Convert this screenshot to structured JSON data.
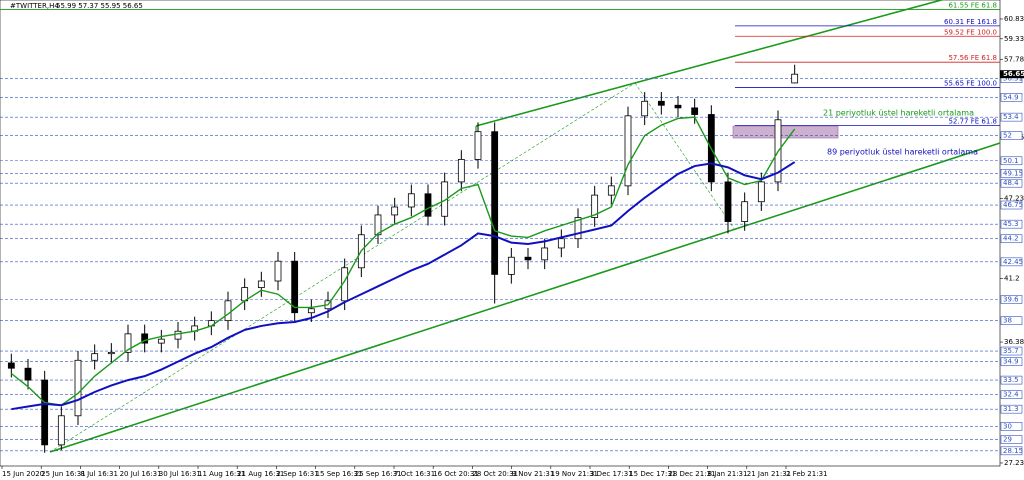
{
  "header": {
    "symbol": "#TWITTER,H4",
    "ohlc": "55.99 57.37 55.95 56.65"
  },
  "chart_data": {
    "type": "candlestick",
    "open": [
      34.8,
      34.4,
      33.5,
      28.6,
      30.8,
      35.0,
      35.5,
      35.6,
      37.0,
      36.3,
      36.6,
      37.2,
      37.6,
      38.0,
      39.5,
      40.5,
      41.0,
      42.5,
      38.6,
      38.9,
      39.5,
      42.0,
      44.5,
      46.0,
      46.6,
      47.6,
      45.9,
      48.5,
      50.2,
      52.3,
      41.5,
      42.8,
      42.6,
      43.5,
      44.2,
      45.8,
      47.5,
      48.2,
      53.5,
      54.6,
      54.3,
      54.1,
      53.6,
      48.5,
      45.5,
      47.0,
      48.5,
      55.99
    ],
    "high": [
      35.5,
      35.1,
      34.2,
      31.5,
      35.7,
      36.2,
      36.3,
      37.7,
      37.7,
      37.3,
      37.9,
      38.3,
      38.7,
      40.2,
      41.2,
      41.7,
      43.2,
      43.2,
      39.6,
      40.2,
      42.7,
      45.2,
      46.7,
      47.3,
      48.3,
      48.3,
      49.2,
      50.9,
      53.0,
      53.0,
      43.5,
      43.5,
      44.2,
      44.9,
      46.5,
      48.2,
      48.9,
      54.2,
      55.3,
      55.3,
      55.0,
      54.8,
      54.3,
      49.2,
      47.7,
      49.2,
      53.9,
      57.37
    ],
    "low": [
      33.7,
      32.8,
      28.0,
      28.2,
      30.1,
      34.3,
      34.8,
      34.9,
      35.6,
      35.6,
      35.9,
      36.5,
      36.9,
      37.3,
      38.8,
      39.8,
      40.3,
      37.9,
      37.9,
      38.2,
      38.8,
      41.3,
      43.8,
      45.3,
      45.9,
      45.2,
      45.2,
      47.8,
      49.5,
      39.3,
      40.8,
      41.9,
      41.9,
      42.8,
      43.5,
      45.1,
      46.8,
      47.5,
      52.8,
      53.6,
      53.4,
      52.9,
      47.8,
      44.6,
      44.8,
      46.3,
      47.8,
      55.95
    ],
    "close": [
      34.4,
      33.5,
      28.6,
      30.8,
      35.0,
      35.5,
      35.6,
      37.0,
      36.3,
      36.6,
      37.2,
      37.6,
      38.0,
      39.5,
      40.5,
      41.0,
      42.5,
      38.6,
      38.9,
      39.5,
      42.0,
      44.5,
      46.0,
      46.6,
      47.6,
      45.9,
      48.5,
      50.2,
      52.3,
      41.5,
      42.8,
      42.6,
      43.5,
      44.2,
      45.8,
      47.5,
      48.2,
      53.5,
      54.6,
      54.3,
      54.1,
      53.6,
      48.5,
      45.5,
      47.0,
      48.5,
      53.2,
      56.65
    ],
    "series": [
      {
        "name": "21 periyotluk üstel hareketli ortalama",
        "color": "#1a9a1a",
        "values": [
          34.0,
          33.0,
          31.8,
          31.6,
          32.5,
          33.8,
          34.8,
          35.8,
          36.5,
          36.8,
          37.0,
          37.2,
          37.6,
          38.5,
          39.5,
          40.3,
          40.0,
          39.0,
          39.0,
          39.2,
          41.0,
          43.3,
          44.6,
          45.3,
          45.8,
          46.5,
          47.1,
          48.0,
          48.3,
          44.8,
          44.4,
          44.3,
          44.8,
          45.2,
          45.6,
          46.0,
          46.6,
          49.8,
          52.0,
          52.8,
          53.3,
          53.4,
          51.0,
          48.8,
          48.3,
          48.6,
          50.8,
          52.5
        ]
      },
      {
        "name": "89 periyotluk üstel hareketli ortalama",
        "color": "#1010c0",
        "values": [
          31.3,
          31.5,
          31.7,
          31.6,
          32.0,
          32.6,
          33.1,
          33.5,
          33.8,
          34.3,
          34.9,
          35.5,
          36.0,
          36.7,
          37.3,
          37.6,
          37.8,
          37.9,
          38.2,
          38.7,
          39.4,
          40.0,
          40.6,
          41.2,
          41.8,
          42.3,
          43.0,
          43.7,
          44.6,
          44.4,
          43.9,
          43.8,
          44.0,
          44.3,
          44.6,
          44.9,
          45.2,
          46.3,
          47.3,
          48.2,
          49.1,
          49.7,
          49.9,
          49.6,
          49.0,
          48.7,
          49.2,
          50.0
        ]
      }
    ],
    "time_labels": [
      "15 Jun 2020",
      "25 Jun 16:31",
      "8 Jul 16:31",
      "20 Jul 16:31",
      "30 Jul 16:31",
      "11 Aug 16:31",
      "21 Aug 16:31",
      "2 Sep 16:31",
      "15 Sep 16:31",
      "25 Sep 16:31",
      "7 Oct 16:31",
      "16 Oct 20:31",
      "28 Oct 20:31",
      "9 Nov 21:31",
      "19 Nov 21:31",
      "3 Dec 17:31",
      "15 Dec 17:31",
      "28 Dec 21:31",
      "8 Jan 21:31",
      "21 Jan 21:31",
      "2 Feb 21:31"
    ],
    "ylim": [
      27.0,
      61.66
    ],
    "yticks": [
      60.83,
      59.33,
      57.78,
      51.86,
      47.23,
      41.2,
      36.38,
      27.23
    ],
    "levels": [
      56.31,
      54.9,
      53.4,
      52.0,
      50.1,
      49.15,
      48.4,
      46.75,
      45.3,
      44.2,
      42.45,
      39.6,
      38.0,
      35.7,
      34.9,
      33.5,
      32.4,
      31.3,
      30.0,
      29.0,
      28.15
    ],
    "fib_levels": [
      {
        "value": 61.55,
        "label": "61.55 FE 61.8",
        "color": "#1a9a1a"
      },
      {
        "value": 60.31,
        "label": "60.31 FE 161.8",
        "color": "#1010c0"
      },
      {
        "value": 59.52,
        "label": "59.52 FE 100.0",
        "color": "#d02020"
      },
      {
        "value": 57.56,
        "label": "57.56 FE 61.8",
        "color": "#d02020"
      },
      {
        "value": 55.65,
        "label": "55.65 FE 100.0",
        "color": "#1010c0"
      },
      {
        "value": 52.77,
        "label": "52.77 FE 61.8",
        "color": "#1010c0"
      }
    ],
    "last_price": 56.65
  }
}
